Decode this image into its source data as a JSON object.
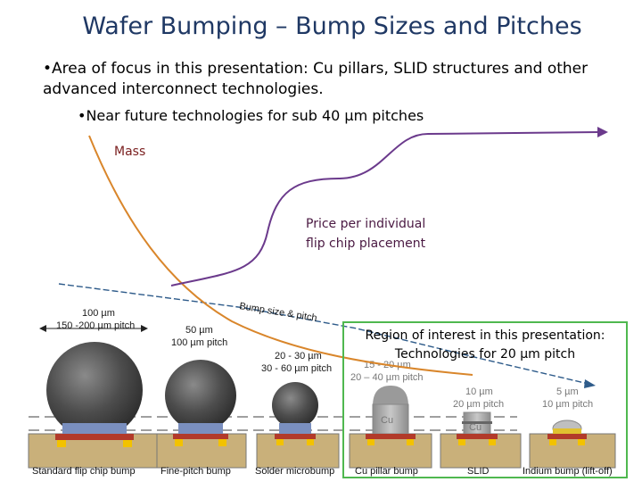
{
  "title": "Wafer Bumping – Bump Sizes and Pitches",
  "bullets": {
    "b1": "•Area of focus in this presentation: Cu pillars, SLID structures and other advanced interconnect technologies.",
    "b2": "•Near future technologies for sub 40 µm pitches"
  },
  "curves": {
    "mass_label": "Mass",
    "price_label_1": "Price per individual",
    "price_label_2": "flip chip placement",
    "trend_label": "Bump size & pitch"
  },
  "region": {
    "line1": "Region of interest in this presentation:",
    "line2": "Technologies for 20 µm pitch"
  },
  "bumps": [
    {
      "size": "100 µm",
      "pitch": "150 -200 µm pitch",
      "caption": "Standard flip chip bump"
    },
    {
      "size": "50 µm",
      "pitch": "100 µm pitch",
      "caption": "Fine-pitch bump"
    },
    {
      "size": "20 - 30 µm",
      "pitch": "30 - 60 µm pitch",
      "caption": "Solder microbump"
    },
    {
      "size": "15 - 20 µm",
      "pitch": "20 – 40 µm pitch",
      "caption": "Cu pillar bump"
    },
    {
      "size": "10 µm",
      "pitch": "20 µm pitch",
      "caption": "SLID"
    },
    {
      "size": "5 µm",
      "pitch": "10 µm pitch",
      "caption": "Indium bump (lift-off)"
    }
  ],
  "materials": {
    "cu": "Cu",
    "cu_slid": "Cu"
  },
  "colors": {
    "title": "#1f3864",
    "mass": "#d9862b",
    "price": "#6b3a8c",
    "trend": "#2e5b8a",
    "region_border": "#4fb84f"
  }
}
